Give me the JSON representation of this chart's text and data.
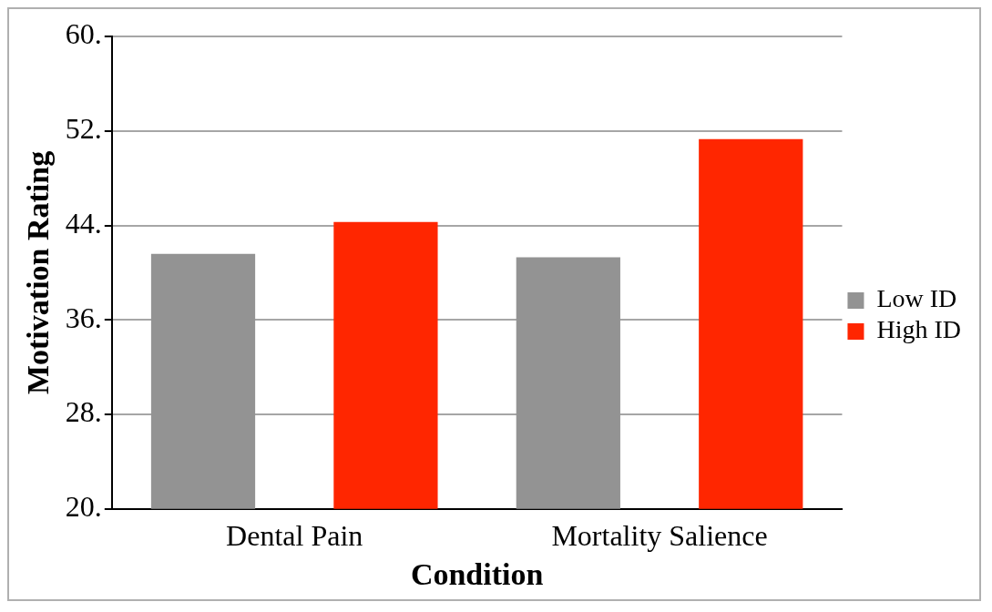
{
  "chart_data": {
    "type": "bar",
    "categories": [
      "Dental Pain",
      "Mortality Salience"
    ],
    "series": [
      {
        "name": "Low ID",
        "color": "#939393",
        "values": [
          41.6,
          41.3
        ]
      },
      {
        "name": "High ID",
        "color": "#ff2600",
        "values": [
          44.3,
          51.3
        ]
      }
    ],
    "xlabel": "Condition",
    "ylabel": "Motivation Rating",
    "ylim": [
      20,
      60
    ],
    "yticks": [
      {
        "value": 20,
        "label": "20."
      },
      {
        "value": 28,
        "label": "28."
      },
      {
        "value": 36,
        "label": "36."
      },
      {
        "value": 44,
        "label": "44."
      },
      {
        "value": 52,
        "label": "52."
      },
      {
        "value": 60,
        "label": "60."
      }
    ],
    "grid": "y",
    "legend": "right"
  }
}
